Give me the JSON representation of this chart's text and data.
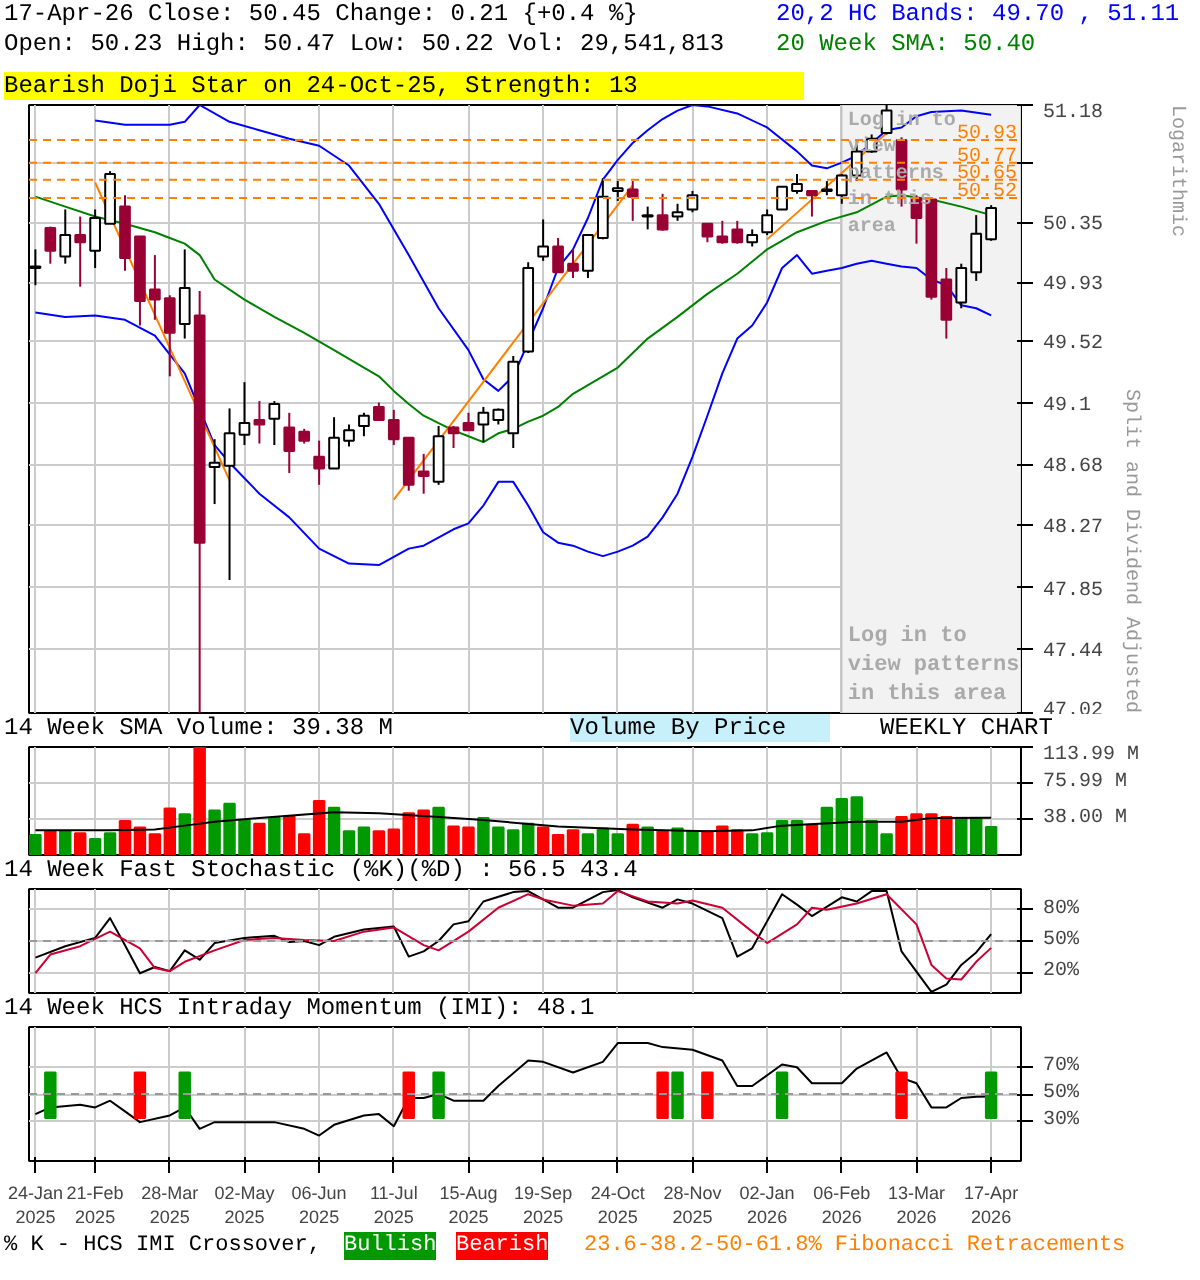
{
  "chart_data": [
    {
      "type": "candlestick",
      "title": "17-Apr-26 Close: 50.45 Change: 0.21 {+0.4 %}",
      "subtitle": "Open: 50.23 High: 50.47 Low: 50.22 Vol: 29,541,813",
      "ylabel": "Split and Dividend Adjusted",
      "log": true,
      "grid": true,
      "tick_labels": "y",
      "x": [
        "2025-01-24",
        "2025-01-31",
        "2025-02-07",
        "2025-02-14",
        "2025-02-21",
        "2025-02-28",
        "2025-03-07",
        "2025-03-14",
        "2025-03-21",
        "2025-03-28",
        "2025-04-04",
        "2025-04-11",
        "2025-04-18",
        "2025-04-25",
        "2025-05-02",
        "2025-05-09",
        "2025-05-16",
        "2025-05-23",
        "2025-05-30",
        "2025-06-06",
        "2025-06-13",
        "2025-06-20",
        "2025-06-27",
        "2025-07-04",
        "2025-07-11",
        "2025-07-18",
        "2025-07-25",
        "2025-08-01",
        "2025-08-08",
        "2025-08-15",
        "2025-08-22",
        "2025-08-29",
        "2025-09-05",
        "2025-09-12",
        "2025-09-19",
        "2025-09-26",
        "2025-10-03",
        "2025-10-10",
        "2025-10-17",
        "2025-10-24",
        "2025-10-31",
        "2025-11-07",
        "2025-11-14",
        "2025-11-21",
        "2025-11-28",
        "2025-12-05",
        "2025-12-12",
        "2025-12-19",
        "2025-12-26",
        "2026-01-02",
        "2026-01-09",
        "2026-01-16",
        "2026-01-23",
        "2026-01-30",
        "2026-02-06",
        "2026-02-13",
        "2026-02-20",
        "2026-02-27",
        "2026-03-06",
        "2026-03-13",
        "2026-03-20",
        "2026-03-27",
        "2026-04-03",
        "2026-04-10",
        "2026-04-17"
      ],
      "ohlc": [
        [
          50.03,
          50.16,
          49.91,
          50.04
        ],
        [
          50.31,
          50.32,
          50.06,
          50.15
        ],
        [
          50.11,
          50.44,
          50.06,
          50.26
        ],
        [
          50.26,
          50.39,
          49.9,
          50.21
        ],
        [
          50.15,
          50.44,
          50.03,
          50.38
        ],
        [
          50.34,
          50.71,
          50.34,
          50.69
        ],
        [
          50.46,
          50.54,
          50.01,
          50.1
        ],
        [
          50.25,
          50.25,
          49.63,
          49.8
        ],
        [
          49.88,
          50.12,
          49.67,
          49.81
        ],
        [
          49.82,
          49.84,
          49.28,
          49.58
        ],
        [
          49.64,
          50.16,
          49.54,
          49.89
        ],
        [
          49.7,
          49.87,
          47.02,
          48.15
        ],
        [
          48.66,
          48.85,
          48.41,
          48.69
        ],
        [
          48.67,
          49.06,
          47.9,
          48.89
        ],
        [
          48.88,
          49.24,
          48.81,
          48.96
        ],
        [
          48.98,
          49.11,
          48.82,
          48.95
        ],
        [
          48.99,
          49.11,
          48.81,
          49.09
        ],
        [
          48.93,
          49.03,
          48.62,
          48.77
        ],
        [
          48.9,
          48.92,
          48.82,
          48.84
        ],
        [
          48.73,
          48.84,
          48.54,
          48.65
        ],
        [
          48.65,
          49.0,
          48.65,
          48.86
        ],
        [
          48.84,
          48.95,
          48.8,
          48.91
        ],
        [
          48.94,
          49.03,
          48.87,
          49.01
        ],
        [
          49.07,
          49.1,
          48.98,
          48.98
        ],
        [
          48.98,
          49.05,
          48.81,
          48.85
        ],
        [
          48.86,
          48.86,
          48.5,
          48.54
        ],
        [
          48.63,
          48.75,
          48.48,
          48.6
        ],
        [
          48.56,
          48.94,
          48.54,
          48.87
        ],
        [
          48.93,
          48.94,
          48.79,
          48.89
        ],
        [
          48.96,
          49.03,
          48.91,
          48.91
        ],
        [
          48.95,
          49.07,
          48.83,
          49.03
        ],
        [
          48.98,
          49.06,
          48.95,
          49.05
        ],
        [
          48.89,
          49.42,
          48.79,
          49.38
        ],
        [
          49.45,
          50.07,
          49.44,
          50.03
        ],
        [
          50.11,
          50.37,
          50.08,
          50.18
        ],
        [
          50.18,
          50.24,
          50.0,
          50.0
        ],
        [
          50.06,
          50.16,
          49.96,
          50.01
        ],
        [
          50.01,
          50.26,
          49.96,
          50.26
        ],
        [
          50.24,
          50.66,
          50.23,
          50.53
        ],
        [
          50.57,
          50.64,
          50.5,
          50.59
        ],
        [
          50.58,
          50.64,
          50.36,
          50.53
        ],
        [
          50.39,
          50.46,
          50.3,
          50.4
        ],
        [
          50.4,
          50.55,
          50.29,
          50.3
        ],
        [
          50.39,
          50.48,
          50.36,
          50.42
        ],
        [
          50.44,
          50.57,
          50.42,
          50.54
        ],
        [
          50.34,
          50.34,
          50.21,
          50.25
        ],
        [
          50.25,
          50.36,
          50.2,
          50.21
        ],
        [
          50.3,
          50.36,
          50.2,
          50.21
        ],
        [
          50.21,
          50.3,
          50.18,
          50.26
        ],
        [
          50.28,
          50.44,
          50.26,
          50.4
        ],
        [
          50.44,
          50.6,
          50.44,
          50.6
        ],
        [
          50.57,
          50.69,
          50.55,
          50.62
        ],
        [
          50.57,
          50.57,
          50.39,
          50.54
        ],
        [
          50.57,
          50.64,
          50.54,
          50.58
        ],
        [
          50.54,
          50.69,
          50.48,
          50.68
        ],
        [
          50.68,
          50.93,
          50.64,
          50.85
        ],
        [
          50.85,
          50.97,
          50.84,
          50.94
        ],
        [
          50.98,
          51.18,
          50.97,
          51.14
        ],
        [
          50.93,
          50.95,
          50.46,
          50.58
        ],
        [
          50.52,
          50.54,
          50.2,
          50.38
        ],
        [
          50.51,
          50.51,
          49.81,
          49.83
        ],
        [
          49.95,
          50.03,
          49.54,
          49.67
        ],
        [
          49.79,
          50.06,
          49.75,
          50.03
        ],
        [
          50.0,
          50.4,
          49.94,
          50.27
        ],
        [
          50.23,
          50.47,
          50.22,
          50.45
        ]
      ],
      "series": [
        {
          "name": "20,2 HC Bands: 49.70 , 51.11",
          "type": "line",
          "color": "#0000ff",
          "x": [
            "2025-02-21",
            "2025-03-07",
            "2025-03-28",
            "2025-04-04",
            "2025-04-11",
            "2025-04-25",
            "2025-05-09",
            "2025-05-23",
            "2025-06-06",
            "2025-06-20",
            "2025-07-04",
            "2025-07-18",
            "2025-08-01",
            "2025-08-15",
            "2025-08-22",
            "2025-08-29",
            "2025-09-05",
            "2025-09-19",
            "2025-09-26",
            "2025-10-03",
            "2025-10-10",
            "2025-10-17",
            "2025-10-24",
            "2025-10-31",
            "2025-11-07",
            "2025-11-14",
            "2025-11-21",
            "2025-11-28",
            "2025-12-05",
            "2025-12-19",
            "2026-01-02",
            "2026-01-16",
            "2026-01-23",
            "2026-01-30",
            "2026-02-06",
            "2026-02-13",
            "2026-02-20",
            "2026-02-27",
            "2026-03-06",
            "2026-03-13",
            "2026-03-20",
            "2026-04-03",
            "2026-04-17"
          ],
          "values": [
            51.07,
            51.04,
            51.04,
            51.06,
            51.18,
            51.06,
            51.0,
            50.94,
            50.89,
            50.75,
            50.48,
            50.12,
            49.75,
            49.46,
            49.26,
            49.18,
            49.28,
            49.75,
            50.03,
            50.16,
            50.38,
            50.65,
            50.79,
            50.91,
            51.0,
            51.08,
            51.14,
            51.18,
            51.17,
            51.12,
            51.02,
            50.85,
            50.75,
            50.73,
            50.77,
            50.82,
            50.91,
            51.0,
            51.02,
            51.1,
            51.13,
            51.14,
            51.11
          ]
        },
        {
          "type": "line",
          "color": "#0000ff",
          "x": [
            "2025-01-24",
            "2025-02-07",
            "2025-02-21",
            "2025-03-07",
            "2025-03-21",
            "2025-04-04",
            "2025-04-18",
            "2025-04-25",
            "2025-05-09",
            "2025-05-23",
            "2025-06-06",
            "2025-06-20",
            "2025-07-04",
            "2025-07-18",
            "2025-07-25",
            "2025-08-08",
            "2025-08-15",
            "2025-08-22",
            "2025-08-29",
            "2025-09-05",
            "2025-09-12",
            "2025-09-19",
            "2025-09-26",
            "2025-10-03",
            "2025-10-10",
            "2025-10-17",
            "2025-10-24",
            "2025-10-31",
            "2025-11-07",
            "2025-11-14",
            "2025-11-21",
            "2025-11-28",
            "2025-12-05",
            "2025-12-12",
            "2025-12-19",
            "2025-12-26",
            "2026-01-02",
            "2026-01-09",
            "2026-01-16",
            "2026-01-23",
            "2026-01-30",
            "2026-02-06",
            "2026-02-13",
            "2026-02-20",
            "2026-02-27",
            "2026-03-06",
            "2026-03-13",
            "2026-03-20",
            "2026-03-27",
            "2026-04-03",
            "2026-04-10",
            "2026-04-17"
          ],
          "values": [
            49.72,
            49.69,
            49.7,
            49.67,
            49.56,
            49.3,
            48.81,
            48.69,
            48.48,
            48.32,
            48.11,
            48.01,
            48.0,
            48.11,
            48.13,
            48.24,
            48.28,
            48.4,
            48.56,
            48.56,
            48.4,
            48.22,
            48.15,
            48.13,
            48.09,
            48.06,
            48.09,
            48.13,
            48.19,
            48.32,
            48.48,
            48.73,
            49.01,
            49.3,
            49.54,
            49.63,
            49.79,
            50.03,
            50.12,
            49.99,
            50.01,
            50.03,
            50.06,
            50.08,
            50.06,
            50.04,
            50.03,
            49.95,
            49.91,
            49.77,
            49.75,
            49.7
          ]
        },
        {
          "name": "20 Week SMA: 50.40",
          "type": "line",
          "color": "#008000",
          "x": [
            "2025-01-24",
            "2025-02-07",
            "2025-02-21",
            "2025-03-07",
            "2025-03-21",
            "2025-03-28",
            "2025-04-04",
            "2025-04-11",
            "2025-04-18",
            "2025-05-02",
            "2025-05-16",
            "2025-05-30",
            "2025-06-13",
            "2025-06-27",
            "2025-07-04",
            "2025-07-11",
            "2025-07-18",
            "2025-07-25",
            "2025-08-01",
            "2025-08-08",
            "2025-08-15",
            "2025-08-22",
            "2025-08-29",
            "2025-09-05",
            "2025-09-12",
            "2025-09-19",
            "2025-09-26",
            "2025-10-03",
            "2025-10-10",
            "2025-10-24",
            "2025-11-07",
            "2025-11-21",
            "2025-12-05",
            "2025-12-19",
            "2026-01-02",
            "2026-01-16",
            "2026-01-30",
            "2026-02-13",
            "2026-02-27",
            "2026-03-06",
            "2026-03-20",
            "2026-04-03",
            "2026-04-17"
          ],
          "values": [
            50.53,
            50.46,
            50.39,
            50.34,
            50.28,
            50.24,
            50.2,
            50.12,
            49.95,
            49.81,
            49.69,
            49.58,
            49.46,
            49.34,
            49.28,
            49.18,
            49.09,
            49.01,
            48.96,
            48.91,
            48.87,
            48.83,
            48.89,
            48.92,
            48.97,
            49.01,
            49.07,
            49.16,
            49.22,
            49.34,
            49.54,
            49.69,
            49.85,
            49.99,
            50.16,
            50.28,
            50.36,
            50.42,
            50.53,
            50.54,
            50.51,
            50.46,
            50.4
          ]
        },
        {
          "type": "line",
          "color": "#ff8000",
          "x": [
            "2025-02-21",
            "2025-04-25"
          ],
          "values": [
            50.63,
            48.57
          ]
        },
        {
          "type": "line",
          "color": "#ff8000",
          "x": [
            "2025-07-11",
            "2025-10-31"
          ],
          "values": [
            48.44,
            50.61
          ]
        },
        {
          "type": "line",
          "color": "#ff8000",
          "x": [
            "2026-01-02",
            "2026-02-27"
          ],
          "values": [
            50.23,
            50.98
          ]
        }
      ],
      "xlim": [
        "2025-01-21",
        "2026-05-01"
      ],
      "xticks": [
        {
          "value": "2025-01-24",
          "label": null
        },
        {
          "value": "2025-02-21",
          "label": null
        },
        {
          "value": "2025-03-28",
          "label": null
        },
        {
          "value": "2025-05-02",
          "label": null
        },
        {
          "value": "2025-06-06",
          "label": null
        },
        {
          "value": "2025-07-11",
          "label": null
        },
        {
          "value": "2025-08-15",
          "label": null
        },
        {
          "value": "2025-09-19",
          "label": null
        },
        {
          "value": "2025-10-24",
          "label": null
        },
        {
          "value": "2025-11-28",
          "label": null
        },
        {
          "value": "2026-01-02",
          "label": null
        },
        {
          "value": "2026-02-06",
          "label": null
        },
        {
          "value": "2026-03-13",
          "label": null
        },
        {
          "value": "2026-04-17",
          "label": null
        }
      ],
      "ylim": [
        47.02,
        51.18
      ],
      "yticks": [
        47.02,
        47.44,
        47.85,
        48.27,
        48.68,
        49.1,
        49.52,
        49.93,
        50.35,
        {
          "value": 50.77,
          "label": null
        },
        51.18
      ],
      "ref_lines": [
        {
          "axis": "y",
          "value": 50.93,
          "label": "50.93",
          "color": "#ff8000",
          "line_style": "dashed"
        },
        {
          "axis": "y",
          "value": 50.77,
          "label": "50.77",
          "color": "#ff8000",
          "line_style": "dashed"
        },
        {
          "axis": "y",
          "value": 50.65,
          "label": "50.65",
          "color": "#ff8000",
          "line_style": "dashed"
        },
        {
          "axis": "y",
          "value": 50.52,
          "label": "50.52",
          "color": "#ff8000",
          "line_style": "dashed"
        }
      ],
      "bands": [
        {
          "axis": "x",
          "from": "2026-02-06",
          "to": "2026-05-01",
          "label": "Log in to view patterns in this area",
          "color": "#f2f2f2"
        }
      ],
      "annotations": [
        "Bearish Doji Star on 24-Oct-25, Strength: 13",
        "Log in to view patterns in this area",
        "Logarithmic"
      ]
    },
    {
      "type": "bar",
      "grid": true,
      "tick_labels": "y",
      "x": [
        "2025-01-24",
        "2025-01-31",
        "2025-02-07",
        "2025-02-14",
        "2025-02-21",
        "2025-02-28",
        "2025-03-07",
        "2025-03-14",
        "2025-03-21",
        "2025-03-28",
        "2025-04-04",
        "2025-04-11",
        "2025-04-18",
        "2025-04-25",
        "2025-05-02",
        "2025-05-09",
        "2025-05-16",
        "2025-05-23",
        "2025-05-30",
        "2025-06-06",
        "2025-06-13",
        "2025-06-20",
        "2025-06-27",
        "2025-07-04",
        "2025-07-11",
        "2025-07-18",
        "2025-07-25",
        "2025-08-01",
        "2025-08-08",
        "2025-08-15",
        "2025-08-22",
        "2025-08-29",
        "2025-09-05",
        "2025-09-12",
        "2025-09-19",
        "2025-09-26",
        "2025-10-03",
        "2025-10-10",
        "2025-10-17",
        "2025-10-24",
        "2025-10-31",
        "2025-11-07",
        "2025-11-14",
        "2025-11-21",
        "2025-11-28",
        "2025-12-05",
        "2025-12-12",
        "2025-12-19",
        "2025-12-26",
        "2026-01-02",
        "2026-01-09",
        "2026-01-16",
        "2026-01-23",
        "2026-01-30",
        "2026-02-06",
        "2026-02-13",
        "2026-02-20",
        "2026-02-27",
        "2026-03-06",
        "2026-03-13",
        "2026-03-20",
        "2026-03-27",
        "2026-04-03",
        "2026-04-10",
        "2026-04-17"
      ],
      "series": [
        {
          "type": "bar",
          "values": [
            21,
            25,
            25,
            23,
            17,
            23,
            36,
            29,
            22,
            49,
            43,
            113.99,
            47,
            54,
            37,
            33,
            39,
            41,
            22,
            57,
            50,
            25,
            29,
            25,
            27,
            44,
            47,
            50,
            30,
            29,
            39,
            29,
            26,
            33,
            29,
            21,
            26,
            22,
            28,
            22,
            32,
            29,
            25,
            28,
            25,
            25,
            30,
            26,
            22,
            23,
            36,
            36,
            32,
            50,
            59,
            61,
            36,
            22,
            40,
            43,
            43,
            40,
            39,
            39,
            29.54
          ],
          "colors": [
            "#009900",
            "#ff0000",
            "#009900",
            "#ff0000",
            "#009900",
            "#009900",
            "#ff0000",
            "#ff0000",
            "#ff0000",
            "#ff0000",
            "#009900",
            "#ff0000",
            "#009900",
            "#009900",
            "#009900",
            "#ff0000",
            "#009900",
            "#ff0000",
            "#ff0000",
            "#ff0000",
            "#009900",
            "#009900",
            "#009900",
            "#ff0000",
            "#ff0000",
            "#ff0000",
            "#ff0000",
            "#009900",
            "#ff0000",
            "#ff0000",
            "#009900",
            "#009900",
            "#009900",
            "#009900",
            "#ff0000",
            "#ff0000",
            "#ff0000",
            "#009900",
            "#009900",
            "#009900",
            "#ff0000",
            "#009900",
            "#ff0000",
            "#009900",
            "#009900",
            "#ff0000",
            "#ff0000",
            "#ff0000",
            "#009900",
            "#009900",
            "#009900",
            "#009900",
            "#ff0000",
            "#009900",
            "#009900",
            "#009900",
            "#009900",
            "#009900",
            "#ff0000",
            "#ff0000",
            "#ff0000",
            "#ff0000",
            "#009900",
            "#009900",
            "#009900"
          ]
        },
        {
          "name": "14 Week SMA Volume: 39.38 M",
          "type": "line",
          "color": "#000000",
          "x": [
            "2025-01-24",
            "2025-02-28",
            "2025-03-21",
            "2025-04-04",
            "2025-04-18",
            "2025-05-09",
            "2025-06-13",
            "2025-07-04",
            "2025-08-01",
            "2025-08-22",
            "2025-09-26",
            "2025-10-31",
            "2025-12-05",
            "2025-12-26",
            "2026-01-09",
            "2026-02-13",
            "2026-03-06",
            "2026-03-20",
            "2026-04-17"
          ],
          "values": [
            26,
            26,
            27,
            31,
            35,
            39,
            45,
            44,
            40,
            37,
            30,
            27,
            25,
            26,
            31,
            35,
            35,
            39,
            39.38
          ]
        }
      ],
      "xlim": [
        "2025-01-21",
        "2026-05-01"
      ],
      "xticks": [
        {
          "value": "2025-01-24",
          "label": null
        },
        {
          "value": "2025-02-21",
          "label": null
        },
        {
          "value": "2025-03-28",
          "label": null
        },
        {
          "value": "2025-05-02",
          "label": null
        },
        {
          "value": "2025-06-06",
          "label": null
        },
        {
          "value": "2025-07-11",
          "label": null
        },
        {
          "value": "2025-08-15",
          "label": null
        },
        {
          "value": "2025-09-19",
          "label": null
        },
        {
          "value": "2025-10-24",
          "label": null
        },
        {
          "value": "2025-11-28",
          "label": null
        },
        {
          "value": "2026-01-02",
          "label": null
        },
        {
          "value": "2026-02-06",
          "label": null
        },
        {
          "value": "2026-03-13",
          "label": null
        },
        {
          "value": "2026-04-17",
          "label": null
        }
      ],
      "ylim": [
        0,
        113.99
      ],
      "yticks": [
        {
          "value": 38.0,
          "label": "38.00 M"
        },
        {
          "value": 75.99,
          "label": "75.99 M"
        },
        {
          "value": 113.99,
          "label": "113.99 M"
        }
      ],
      "annotations": [
        "Volume By Price",
        "WEEKLY CHART"
      ]
    },
    {
      "type": "line",
      "title": "14 Week Fast Stochastic (%K)(%D) : 56.5 43.4",
      "grid": true,
      "tick_labels": "y",
      "series": [
        {
          "type": "line",
          "color": "#000000",
          "x": [
            "2025-01-24",
            "2025-02-07",
            "2025-02-21",
            "2025-02-28",
            "2025-03-07",
            "2025-03-14",
            "2025-03-21",
            "2025-03-28",
            "2025-04-04",
            "2025-04-11",
            "2025-04-18",
            "2025-05-02",
            "2025-05-16",
            "2025-05-23",
            "2025-05-30",
            "2025-06-06",
            "2025-06-13",
            "2025-06-27",
            "2025-07-11",
            "2025-07-18",
            "2025-07-25",
            "2025-08-01",
            "2025-08-08",
            "2025-08-15",
            "2025-08-22",
            "2025-09-05",
            "2025-09-12",
            "2025-09-26",
            "2025-10-03",
            "2025-10-17",
            "2025-10-24",
            "2025-10-31",
            "2025-11-14",
            "2025-11-21",
            "2025-11-28",
            "2025-12-12",
            "2025-12-19",
            "2025-12-26",
            "2026-01-09",
            "2026-01-16",
            "2026-01-23",
            "2026-02-06",
            "2026-02-13",
            "2026-02-20",
            "2026-02-27",
            "2026-03-06",
            "2026-03-20",
            "2026-03-27",
            "2026-04-03",
            "2026-04-10",
            "2026-04-17"
          ],
          "values": [
            34,
            45,
            53,
            72,
            46,
            19,
            25,
            21,
            41,
            32,
            48,
            53,
            55,
            49,
            50,
            46,
            54,
            61,
            64,
            35,
            40,
            50,
            66,
            69,
            88,
            97,
            98,
            82,
            82,
            97,
            99,
            92,
            82,
            90,
            86,
            72,
            35,
            43,
            95,
            85,
            74,
            92,
            88,
            98,
            98,
            40,
            1,
            8,
            27,
            39,
            56.5
          ]
        },
        {
          "type": "line",
          "color": "#cc0033",
          "x": [
            "2025-01-24",
            "2025-01-31",
            "2025-02-14",
            "2025-02-28",
            "2025-03-14",
            "2025-03-21",
            "2025-03-28",
            "2025-04-04",
            "2025-04-18",
            "2025-05-02",
            "2025-05-16",
            "2025-05-30",
            "2025-06-13",
            "2025-06-27",
            "2025-07-11",
            "2025-07-25",
            "2025-08-01",
            "2025-08-15",
            "2025-08-29",
            "2025-09-12",
            "2025-09-19",
            "2025-10-03",
            "2025-10-17",
            "2025-10-24",
            "2025-11-07",
            "2025-11-21",
            "2025-11-28",
            "2025-12-12",
            "2025-12-26",
            "2026-01-02",
            "2026-01-16",
            "2026-01-23",
            "2026-01-30",
            "2026-02-13",
            "2026-02-27",
            "2026-03-13",
            "2026-03-20",
            "2026-03-27",
            "2026-04-03",
            "2026-04-10",
            "2026-04-17"
          ],
          "values": [
            19,
            37,
            45,
            59,
            43,
            24,
            21,
            30,
            41,
            51,
            53,
            51,
            50,
            59,
            63,
            46,
            41,
            59,
            82,
            95,
            90,
            84,
            86,
            98,
            88,
            86,
            89,
            82,
            59,
            48,
            66,
            82,
            80,
            86,
            95,
            66,
            27,
            14,
            13,
            30,
            43.4
          ]
        }
      ],
      "xlim": [
        "2025-01-21",
        "2026-05-01"
      ],
      "xticks": [
        {
          "value": "2025-01-24",
          "label": null
        },
        {
          "value": "2025-02-21",
          "label": null
        },
        {
          "value": "2025-03-28",
          "label": null
        },
        {
          "value": "2025-05-02",
          "label": null
        },
        {
          "value": "2025-06-06",
          "label": null
        },
        {
          "value": "2025-07-11",
          "label": null
        },
        {
          "value": "2025-08-15",
          "label": null
        },
        {
          "value": "2025-09-19",
          "label": null
        },
        {
          "value": "2025-10-24",
          "label": null
        },
        {
          "value": "2025-11-28",
          "label": null
        },
        {
          "value": "2026-01-02",
          "label": null
        },
        {
          "value": "2026-02-06",
          "label": null
        },
        {
          "value": "2026-03-13",
          "label": null
        },
        {
          "value": "2026-04-17",
          "label": null
        }
      ],
      "ylim": [
        0,
        100
      ],
      "yticks": [
        {
          "value": 20,
          "label": "20%"
        },
        {
          "value": 50,
          "label": "50%"
        },
        {
          "value": 80,
          "label": "80%"
        }
      ],
      "ref_lines": [
        {
          "axis": "y",
          "value": 50,
          "color": "#999999",
          "line_style": "dashed"
        }
      ]
    },
    {
      "type": "line",
      "title": "14 Week HCS Intraday Momentum (IMI): 48.1",
      "grid": true,
      "legend": "bottom",
      "series": [
        {
          "type": "line",
          "color": "#000000",
          "x": [
            "2025-01-24",
            "2025-01-31",
            "2025-02-14",
            "2025-02-21",
            "2025-02-28",
            "2025-03-07",
            "2025-03-14",
            "2025-03-28",
            "2025-04-04",
            "2025-04-11",
            "2025-04-18",
            "2025-05-02",
            "2025-05-16",
            "2025-05-30",
            "2025-06-06",
            "2025-06-13",
            "2025-06-27",
            "2025-07-04",
            "2025-07-11",
            "2025-07-18",
            "2025-07-25",
            "2025-08-01",
            "2025-08-08",
            "2025-08-22",
            "2025-08-29",
            "2025-09-12",
            "2025-09-19",
            "2025-10-03",
            "2025-10-17",
            "2025-10-24",
            "2025-11-07",
            "2025-11-14",
            "2025-11-28",
            "2025-12-12",
            "2025-12-19",
            "2025-12-26",
            "2026-01-09",
            "2026-01-16",
            "2026-01-23",
            "2026-02-06",
            "2026-02-13",
            "2026-02-27",
            "2026-03-06",
            "2026-03-13",
            "2026-03-20",
            "2026-03-27",
            "2026-04-03",
            "2026-04-10",
            "2026-04-17"
          ],
          "values": [
            35,
            40,
            42,
            40,
            45,
            37,
            29,
            34,
            40,
            24,
            29,
            29,
            29,
            24,
            19,
            27,
            34,
            35,
            26,
            47,
            47,
            50,
            45,
            45,
            56,
            75,
            74,
            66,
            74,
            88,
            88,
            85,
            83,
            75,
            56,
            56,
            72,
            70,
            58,
            58,
            69,
            81,
            62,
            58,
            40,
            40,
            47,
            48,
            48.1
          ]
        },
        {
          "name": "Bullish",
          "type": "bar",
          "color": "#009900",
          "x": [
            "2025-01-31",
            "2025-04-04",
            "2025-08-01",
            "2025-11-21",
            "2026-01-09",
            "2026-04-17"
          ],
          "base": [
            32,
            32,
            32,
            32,
            32,
            32
          ],
          "values": [
            34,
            34,
            34,
            34,
            34,
            34
          ]
        },
        {
          "name": "Bearish",
          "type": "bar",
          "color": "#ff0000",
          "x": [
            "2025-03-14",
            "2025-07-18",
            "2025-11-14",
            "2025-12-05",
            "2026-03-06"
          ],
          "base": [
            32,
            32,
            32,
            32,
            32
          ],
          "values": [
            34,
            34,
            34,
            34,
            34
          ]
        }
      ],
      "xlim": [
        "2025-01-21",
        "2026-05-01"
      ],
      "xticks": [
        {
          "value": "2025-01-24",
          "label": "24-Jan\n2025"
        },
        {
          "value": "2025-02-21",
          "label": "21-Feb\n2025"
        },
        {
          "value": "2025-03-28",
          "label": "28-Mar\n2025"
        },
        {
          "value": "2025-05-02",
          "label": "02-May\n2025"
        },
        {
          "value": "2025-06-06",
          "label": "06-Jun\n2025"
        },
        {
          "value": "2025-07-11",
          "label": "11-Jul\n2025"
        },
        {
          "value": "2025-08-15",
          "label": "15-Aug\n2025"
        },
        {
          "value": "2025-09-19",
          "label": "19-Sep\n2025"
        },
        {
          "value": "2025-10-24",
          "label": "24-Oct\n2025"
        },
        {
          "value": "2025-11-28",
          "label": "28-Nov\n2025"
        },
        {
          "value": "2026-01-02",
          "label": "02-Jan\n2026"
        },
        {
          "value": "2026-02-06",
          "label": "06-Feb\n2026"
        },
        {
          "value": "2026-03-13",
          "label": "13-Mar\n2026"
        },
        {
          "value": "2026-04-17",
          "label": "17-Apr\n2026"
        }
      ],
      "ylim": [
        0,
        100
      ],
      "yticks": [
        {
          "value": 30,
          "label": "30%"
        },
        {
          "value": 50,
          "label": "50%"
        },
        {
          "value": 70,
          "label": "70%"
        }
      ],
      "ref_lines": [
        {
          "axis": "y",
          "value": 50,
          "color": "#999999",
          "line_style": "dashed"
        }
      ],
      "annotations": [
        "% K - HCS IMI Crossover,",
        "23.6-38.2-50-61.8% Fibonacci Retracements"
      ]
    }
  ]
}
